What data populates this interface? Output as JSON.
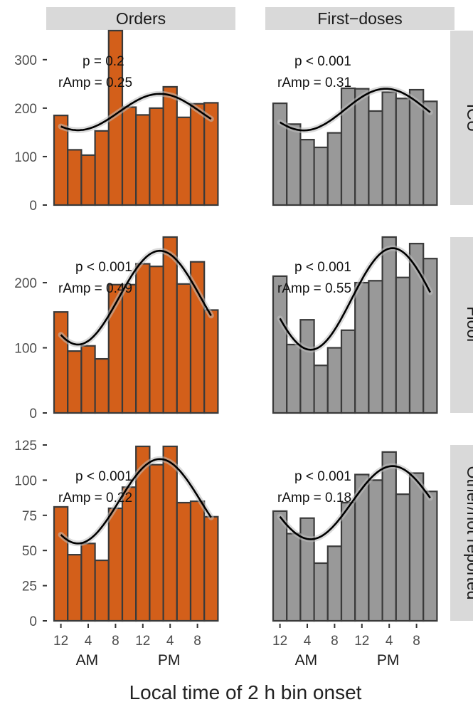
{
  "chart_data": {
    "type": "bar",
    "xlabel": "Local time of 2 h bin onset",
    "x_tick_labels": [
      "12",
      "4",
      "8",
      "12",
      "4",
      "8"
    ],
    "x_period_labels": [
      "AM",
      "PM"
    ],
    "columns": [
      "Orders",
      "First−doses"
    ],
    "rows": [
      "ICU",
      "Floor",
      "Other/not reported"
    ],
    "bar_colors": {
      "Orders": "#d35f1a",
      "First−doses": "#999999"
    },
    "bar_outline_color": "#3a3a3a",
    "strip_color": "#d9d9d9",
    "grid": false,
    "row_scales": [
      {
        "row": "ICU",
        "ylim": [
          0,
          360
        ],
        "yticks": [
          0,
          100,
          200,
          300
        ]
      },
      {
        "row": "Floor",
        "ylim": [
          0,
          270
        ],
        "yticks": [
          0,
          100,
          200
        ]
      },
      {
        "row": "Other/not reported",
        "ylim": [
          0,
          125
        ],
        "yticks": [
          0,
          25,
          50,
          75,
          100,
          125
        ]
      }
    ],
    "panels": [
      {
        "column": "Orders",
        "row": "ICU",
        "values": [
          185,
          114,
          103,
          153,
          360,
          202,
          186,
          200,
          244,
          181,
          209,
          211
        ],
        "annotations": [
          "p = 0.2",
          "rAmp = 0.25"
        ],
        "fit": {
          "mesor": 192,
          "amplitude": 37.5,
          "peak_hour": 15.5
        }
      },
      {
        "column": "First−doses",
        "row": "ICU",
        "values": [
          210,
          167,
          135,
          119,
          149,
          241,
          240,
          194,
          233,
          220,
          238,
          214
        ],
        "annotations": [
          "p < 0.001",
          "rAmp = 0.31"
        ],
        "fit": {
          "mesor": 197,
          "amplitude": 43,
          "peak_hour": 16.5
        }
      },
      {
        "column": "Orders",
        "row": "Floor",
        "values": [
          155,
          95,
          103,
          83,
          197,
          197,
          229,
          225,
          270,
          198,
          232,
          158
        ],
        "annotations": [
          "p < 0.001",
          "rAmp = 0.49"
        ],
        "fit": {
          "mesor": 177,
          "amplitude": 72,
          "peak_hour": 15.5
        }
      },
      {
        "column": "First−doses",
        "row": "Floor",
        "values": [
          210,
          105,
          143,
          73,
          100,
          127,
          200,
          203,
          270,
          208,
          260,
          237
        ],
        "annotations": [
          "p < 0.001",
          "rAmp = 0.55"
        ],
        "fit": {
          "mesor": 175,
          "amplitude": 78,
          "peak_hour": 17.5
        }
      },
      {
        "column": "Orders",
        "row": "Other/not reported",
        "values": [
          81,
          47,
          55,
          43,
          80,
          95,
          124,
          111,
          124,
          84,
          85,
          74
        ],
        "annotations": [
          "p < 0.001",
          "rAmp = 0.22"
        ],
        "fit": {
          "mesor": 85,
          "amplitude": 30,
          "peak_hour": 15.5
        }
      },
      {
        "column": "First−doses",
        "row": "Other/not reported",
        "values": [
          78,
          62,
          73,
          41,
          53,
          84,
          104,
          100,
          120,
          90,
          105,
          92
        ],
        "annotations": [
          "p < 0.001",
          "rAmp = 0.18"
        ],
        "fit": {
          "mesor": 84,
          "amplitude": 26,
          "peak_hour": 17.5
        }
      }
    ]
  }
}
